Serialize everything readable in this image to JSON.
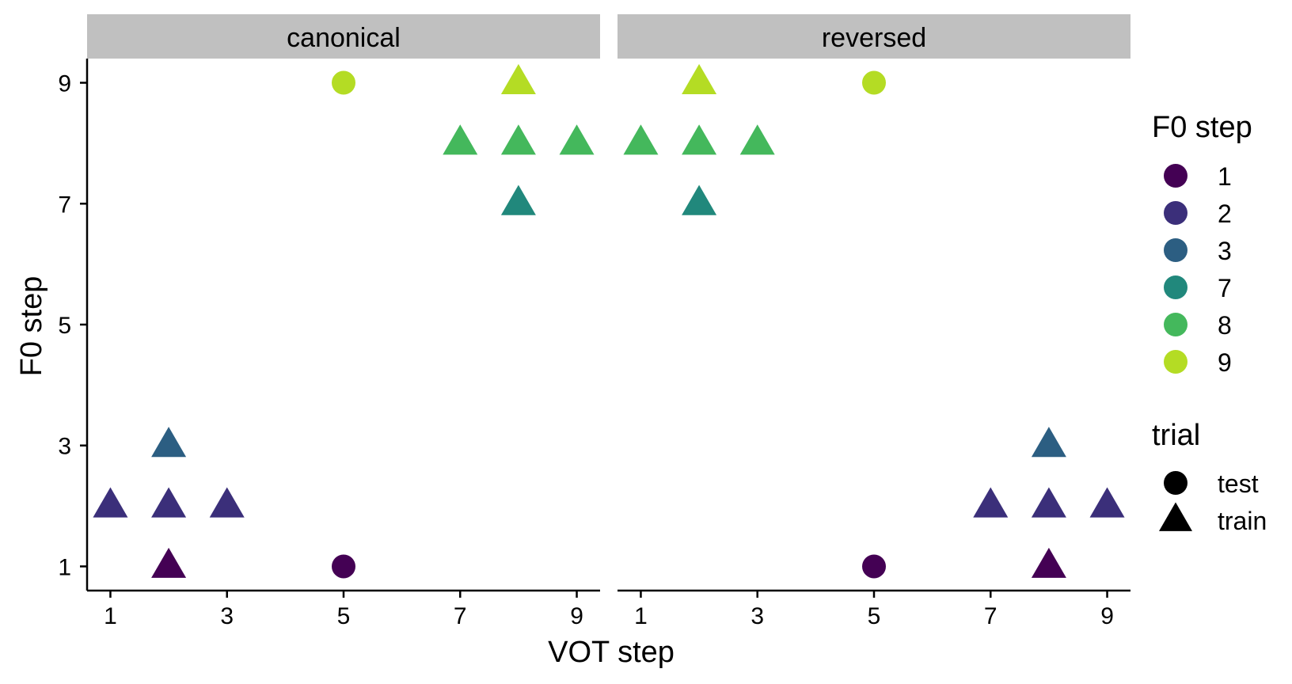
{
  "chart_data": {
    "type": "scatter",
    "xlabel": "VOT step",
    "ylabel": "F0 step",
    "x_ticks": [
      "1",
      "3",
      "5",
      "7",
      "9"
    ],
    "y_ticks": [
      "1",
      "3",
      "5",
      "7",
      "9"
    ],
    "xlim": [
      0.6,
      9.4
    ],
    "ylim": [
      0.6,
      9.4
    ],
    "grid": false,
    "legend_position": "right",
    "color_legend": {
      "title": "F0 step",
      "entries": [
        {
          "label": "1",
          "color": "#440154"
        },
        {
          "label": "2",
          "color": "#3b2f7a"
        },
        {
          "label": "3",
          "color": "#2c5e82"
        },
        {
          "label": "7",
          "color": "#21887c"
        },
        {
          "label": "8",
          "color": "#44b85c"
        },
        {
          "label": "9",
          "color": "#b4dc24"
        }
      ]
    },
    "shape_legend": {
      "title": "trial",
      "entries": [
        {
          "label": "test",
          "shape": "circle"
        },
        {
          "label": "train",
          "shape": "triangle"
        }
      ]
    },
    "panels": [
      {
        "name": "canonical",
        "points": [
          {
            "x": 5,
            "y": 9,
            "f0": "9",
            "trial": "test"
          },
          {
            "x": 8,
            "y": 9,
            "f0": "9",
            "trial": "train"
          },
          {
            "x": 7,
            "y": 8,
            "f0": "8",
            "trial": "train"
          },
          {
            "x": 8,
            "y": 8,
            "f0": "8",
            "trial": "train"
          },
          {
            "x": 9,
            "y": 8,
            "f0": "8",
            "trial": "train"
          },
          {
            "x": 8,
            "y": 7,
            "f0": "7",
            "trial": "train"
          },
          {
            "x": 2,
            "y": 3,
            "f0": "3",
            "trial": "train"
          },
          {
            "x": 1,
            "y": 2,
            "f0": "2",
            "trial": "train"
          },
          {
            "x": 2,
            "y": 2,
            "f0": "2",
            "trial": "train"
          },
          {
            "x": 3,
            "y": 2,
            "f0": "2",
            "trial": "train"
          },
          {
            "x": 2,
            "y": 1,
            "f0": "1",
            "trial": "train"
          },
          {
            "x": 5,
            "y": 1,
            "f0": "1",
            "trial": "test"
          }
        ]
      },
      {
        "name": "reversed",
        "points": [
          {
            "x": 2,
            "y": 9,
            "f0": "9",
            "trial": "train"
          },
          {
            "x": 5,
            "y": 9,
            "f0": "9",
            "trial": "test"
          },
          {
            "x": 1,
            "y": 8,
            "f0": "8",
            "trial": "train"
          },
          {
            "x": 2,
            "y": 8,
            "f0": "8",
            "trial": "train"
          },
          {
            "x": 3,
            "y": 8,
            "f0": "8",
            "trial": "train"
          },
          {
            "x": 2,
            "y": 7,
            "f0": "7",
            "trial": "train"
          },
          {
            "x": 8,
            "y": 3,
            "f0": "3",
            "trial": "train"
          },
          {
            "x": 7,
            "y": 2,
            "f0": "2",
            "trial": "train"
          },
          {
            "x": 8,
            "y": 2,
            "f0": "2",
            "trial": "train"
          },
          {
            "x": 9,
            "y": 2,
            "f0": "2",
            "trial": "train"
          },
          {
            "x": 8,
            "y": 1,
            "f0": "1",
            "trial": "train"
          },
          {
            "x": 5,
            "y": 1,
            "f0": "1",
            "trial": "test"
          }
        ]
      }
    ]
  }
}
